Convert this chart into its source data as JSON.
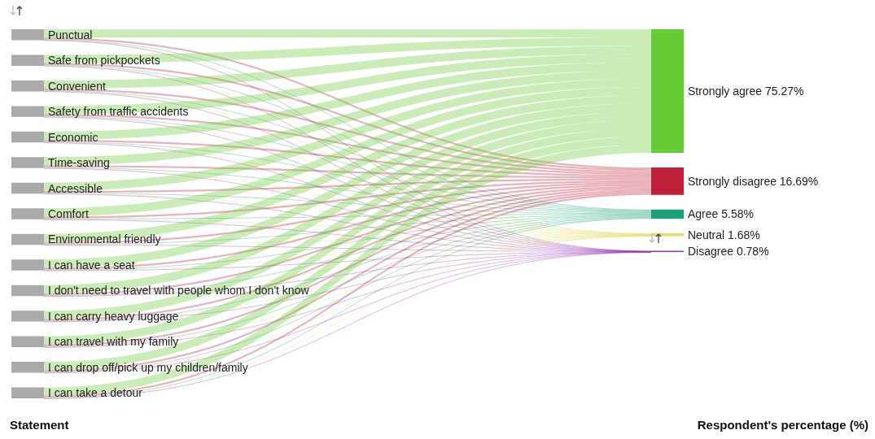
{
  "chart_data": {
    "type": "other",
    "xlabel": "Statement",
    "y2label": "Respondent's percentage (%)",
    "y_categories": [
      "Punctual",
      "Safe from pickpockets",
      "Convenient",
      "Safety from traffic accidents",
      "Economic",
      "Time-saving",
      "Accessible",
      "Comfort",
      "Environmental friendly",
      "I can have a seat",
      "I don't need to travel with people whom I don't know",
      "I can carry heavy luggage",
      "I can travel with my family",
      "I can drop off/pick up my children/family",
      "I can take a detour"
    ],
    "categories": [
      "Strongly agree",
      "Strongly disagree",
      "Agree",
      "Neutral",
      "Disagree"
    ],
    "values": [
      75.27,
      16.69,
      5.58,
      1.68,
      0.78
    ],
    "value_labels": [
      "75.27%",
      "16.69%",
      "5.58%",
      "1.68%",
      "0.78%"
    ],
    "colors": [
      "#66cc33",
      "#c0213a",
      "#1aa37a",
      "#e6dc6e",
      "#9933bb"
    ]
  }
}
